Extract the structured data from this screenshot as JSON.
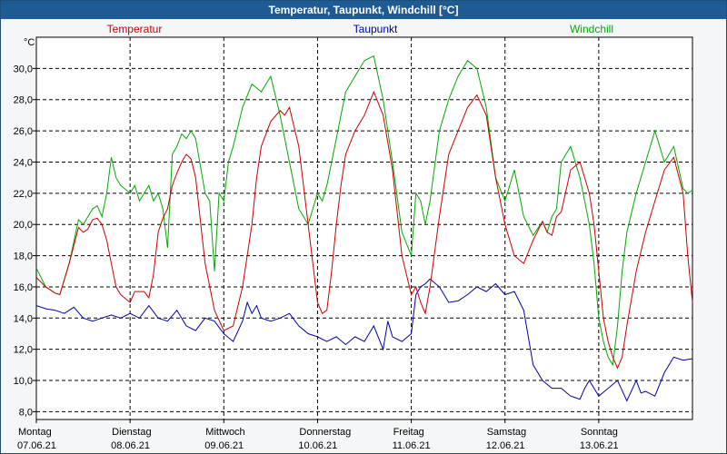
{
  "window": {
    "title": "Temperatur, Taupunkt, Windchill [°C]"
  },
  "chart_data": {
    "type": "line",
    "title": "Temperatur, Taupunkt, Windchill [°C]",
    "ylabel": "°C",
    "ylim": [
      7.5,
      32
    ],
    "yticks": [
      8,
      10,
      12,
      14,
      16,
      18,
      20,
      22,
      24,
      26,
      28,
      30
    ],
    "ytick_labels": [
      "8,0",
      "10,0",
      "12,0",
      "14,0",
      "16,0",
      "18,0",
      "20,0",
      "22,0",
      "24,0",
      "26,0",
      "28,0",
      "30,0"
    ],
    "xlim": [
      0,
      7
    ],
    "x_labels": [
      {
        "day": "Montag",
        "date": "07.06.21"
      },
      {
        "day": "Dienstag",
        "date": "08.06.21"
      },
      {
        "day": "Mittwoch",
        "date": "09.06.21"
      },
      {
        "day": "Donnerstag",
        "date": "10.06.21"
      },
      {
        "day": "Freitag",
        "date": "11.06.21"
      },
      {
        "day": "Samstag",
        "date": "12.06.21"
      },
      {
        "day": "Sonntag",
        "date": "13.06.21"
      }
    ],
    "grid": true,
    "series": [
      {
        "name": "Temperatur",
        "color": "#cc0000",
        "x": [
          0,
          0.1,
          0.2,
          0.25,
          0.35,
          0.45,
          0.5,
          0.55,
          0.6,
          0.65,
          0.7,
          0.75,
          0.8,
          0.85,
          0.9,
          1.0,
          1.05,
          1.15,
          1.2,
          1.25,
          1.3,
          1.35,
          1.4,
          1.45,
          1.5,
          1.55,
          1.6,
          1.65,
          1.7,
          1.8,
          1.9,
          2.0,
          2.1,
          2.2,
          2.3,
          2.35,
          2.4,
          2.5,
          2.6,
          2.65,
          2.7,
          2.8,
          2.9,
          3.0,
          3.05,
          3.1,
          3.15,
          3.2,
          3.25,
          3.3,
          3.4,
          3.5,
          3.6,
          3.7,
          3.8,
          3.9,
          4.0,
          4.05,
          4.1,
          4.15,
          4.2,
          4.3,
          4.4,
          4.5,
          4.6,
          4.7,
          4.8,
          4.9,
          5.0,
          5.1,
          5.2,
          5.3,
          5.4,
          5.45,
          5.5,
          5.55,
          5.6,
          5.7,
          5.8,
          5.9,
          5.95,
          6.0,
          6.05,
          6.1,
          6.15,
          6.2,
          6.25,
          6.3,
          6.4,
          6.5,
          6.6,
          6.7,
          6.8,
          6.9,
          6.95,
          7.0
        ],
        "values": [
          16.6,
          16.0,
          15.6,
          15.5,
          17.5,
          19.8,
          19.5,
          19.7,
          20.3,
          20.4,
          20.0,
          19.0,
          17.5,
          16.0,
          15.5,
          15.0,
          15.7,
          15.7,
          15.3,
          16.8,
          19.5,
          20.4,
          21.0,
          22.5,
          23.3,
          24.0,
          24.5,
          24.2,
          23.0,
          17.5,
          14.5,
          13.2,
          13.5,
          16.0,
          20.0,
          23.0,
          25.0,
          26.6,
          27.3,
          27.0,
          27.5,
          25.0,
          20.0,
          15.0,
          14.3,
          14.5,
          17.0,
          20.0,
          22.5,
          24.5,
          26.0,
          27.0,
          28.5,
          27.0,
          23.5,
          18.0,
          15.5,
          16.0,
          15.0,
          14.3,
          16.0,
          20.5,
          24.5,
          26.0,
          27.5,
          28.3,
          27.0,
          23.0,
          20.0,
          18.0,
          17.5,
          19.0,
          20.2,
          19.5,
          19.3,
          20.5,
          20.8,
          23.5,
          24.0,
          22.0,
          20.0,
          17.0,
          14.0,
          12.5,
          11.5,
          10.8,
          11.5,
          13.5,
          17.0,
          19.5,
          21.5,
          23.5,
          24.3,
          22.0,
          18.0,
          15.0
        ]
      },
      {
        "name": "Taupunkt",
        "color": "#0000aa",
        "x": [
          0,
          0.1,
          0.2,
          0.3,
          0.4,
          0.5,
          0.6,
          0.7,
          0.8,
          0.9,
          1.0,
          1.1,
          1.2,
          1.3,
          1.4,
          1.5,
          1.6,
          1.7,
          1.8,
          1.9,
          2.0,
          2.1,
          2.2,
          2.25,
          2.3,
          2.35,
          2.4,
          2.5,
          2.6,
          2.7,
          2.8,
          2.9,
          3.0,
          3.1,
          3.2,
          3.3,
          3.4,
          3.5,
          3.6,
          3.7,
          3.75,
          3.8,
          3.9,
          4.0,
          4.05,
          4.1,
          4.15,
          4.2,
          4.3,
          4.4,
          4.5,
          4.6,
          4.7,
          4.8,
          4.9,
          5.0,
          5.1,
          5.2,
          5.3,
          5.4,
          5.5,
          5.6,
          5.7,
          5.8,
          5.85,
          5.9,
          6.0,
          6.1,
          6.2,
          6.3,
          6.4,
          6.45,
          6.5,
          6.6,
          6.7,
          6.75,
          6.8,
          6.9,
          7.0
        ],
        "values": [
          14.8,
          14.6,
          14.5,
          14.3,
          14.7,
          14.0,
          13.8,
          14.0,
          14.2,
          14.0,
          14.3,
          14.0,
          14.8,
          14.0,
          13.8,
          14.5,
          13.5,
          13.2,
          14.0,
          13.8,
          13.0,
          12.5,
          13.8,
          15.0,
          14.3,
          14.8,
          14.0,
          13.8,
          14.0,
          14.3,
          13.5,
          13.0,
          12.8,
          12.5,
          12.8,
          12.3,
          12.8,
          12.5,
          13.5,
          12.0,
          13.8,
          12.8,
          12.5,
          13.0,
          15.5,
          16.0,
          16.2,
          16.5,
          16.0,
          15.0,
          15.1,
          15.5,
          16.0,
          15.7,
          16.2,
          15.5,
          15.7,
          14.5,
          11.0,
          10.0,
          9.5,
          9.5,
          9.0,
          8.8,
          9.5,
          10.0,
          9.0,
          9.5,
          10.0,
          8.7,
          10.0,
          9.2,
          9.3,
          9.0,
          10.5,
          11.0,
          11.5,
          11.3,
          11.4
        ]
      },
      {
        "name": "Windchill",
        "color": "#00aa00",
        "x": [
          0,
          0.1,
          0.2,
          0.25,
          0.35,
          0.45,
          0.5,
          0.55,
          0.6,
          0.65,
          0.7,
          0.75,
          0.8,
          0.85,
          0.9,
          1.0,
          1.05,
          1.1,
          1.15,
          1.2,
          1.25,
          1.3,
          1.35,
          1.4,
          1.45,
          1.5,
          1.55,
          1.6,
          1.65,
          1.7,
          1.8,
          1.85,
          1.9,
          1.95,
          2.0,
          2.05,
          2.1,
          2.2,
          2.3,
          2.4,
          2.5,
          2.6,
          2.7,
          2.8,
          2.9,
          3.0,
          3.05,
          3.1,
          3.15,
          3.2,
          3.25,
          3.3,
          3.4,
          3.5,
          3.6,
          3.7,
          3.8,
          3.9,
          4.0,
          4.05,
          4.1,
          4.15,
          4.2,
          4.3,
          4.4,
          4.5,
          4.6,
          4.7,
          4.8,
          4.9,
          5.0,
          5.1,
          5.2,
          5.3,
          5.4,
          5.45,
          5.5,
          5.55,
          5.6,
          5.7,
          5.8,
          5.9,
          5.95,
          6.0,
          6.05,
          6.1,
          6.15,
          6.2,
          6.25,
          6.3,
          6.4,
          6.5,
          6.6,
          6.7,
          6.8,
          6.9,
          6.95,
          7.0
        ],
        "values": [
          17.2,
          16.0,
          15.6,
          15.5,
          17.5,
          20.3,
          20.0,
          20.5,
          21.0,
          21.2,
          20.5,
          22.0,
          24.3,
          23.0,
          22.5,
          22.0,
          22.5,
          21.5,
          22.0,
          22.5,
          21.5,
          22.0,
          21.0,
          18.5,
          24.5,
          25.0,
          25.8,
          25.5,
          26.0,
          25.5,
          22.0,
          21.5,
          17.0,
          22.0,
          21.5,
          24.0,
          25.0,
          27.5,
          29.0,
          28.5,
          29.5,
          27.0,
          24.0,
          21.0,
          20.0,
          22.0,
          21.5,
          22.5,
          24.0,
          25.5,
          27.0,
          28.5,
          29.5,
          30.5,
          30.8,
          28.0,
          24.0,
          19.5,
          18.0,
          22.0,
          21.5,
          20.0,
          21.5,
          26.0,
          28.0,
          29.5,
          30.5,
          30.0,
          27.5,
          23.0,
          21.5,
          23.5,
          20.5,
          19.3,
          20.2,
          19.5,
          20.5,
          21.0,
          24.0,
          25.0,
          23.0,
          20.0,
          17.5,
          14.0,
          12.5,
          11.5,
          11.0,
          13.5,
          17.0,
          19.5,
          22.0,
          24.0,
          26.0,
          24.0,
          25.0,
          22.3,
          22.0,
          22.2
        ]
      }
    ]
  }
}
